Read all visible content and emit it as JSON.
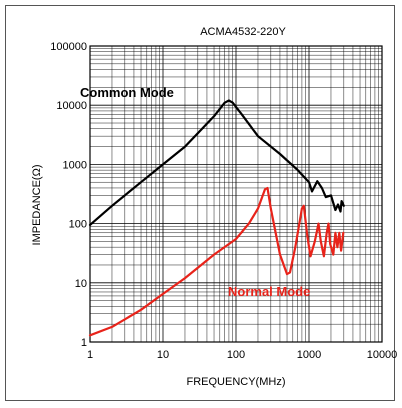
{
  "chart_data": {
    "type": "line",
    "title": "ACMA4532-220Y",
    "xlabel": "FREQUENCY(MHz)",
    "ylabel": "IMPEDANCE(Ω)",
    "x_scale": "log",
    "y_scale": "log",
    "xlim": [
      1,
      10000
    ],
    "ylim": [
      1,
      100000
    ],
    "x_ticks": [
      "1",
      "10",
      "100",
      "1000",
      "10000"
    ],
    "y_ticks": [
      "1",
      "10",
      "100",
      "1000",
      "10000",
      "100000"
    ],
    "grid": true,
    "series": [
      {
        "name": "Common Mode",
        "color": "#000000",
        "points": [
          [
            1,
            95
          ],
          [
            2,
            200
          ],
          [
            5,
            500
          ],
          [
            10,
            1000
          ],
          [
            20,
            2000
          ],
          [
            50,
            6500
          ],
          [
            70,
            11000
          ],
          [
            80,
            12000
          ],
          [
            90,
            11000
          ],
          [
            120,
            7000
          ],
          [
            200,
            3000
          ],
          [
            400,
            1500
          ],
          [
            700,
            800
          ],
          [
            1000,
            500
          ],
          [
            1100,
            350
          ],
          [
            1300,
            520
          ],
          [
            1500,
            400
          ],
          [
            1700,
            280
          ],
          [
            2000,
            300
          ],
          [
            2300,
            170
          ],
          [
            2500,
            210
          ],
          [
            2700,
            160
          ],
          [
            2800,
            240
          ],
          [
            3000,
            200
          ]
        ]
      },
      {
        "name": "Normal Mode",
        "color": "#e8231a",
        "points": [
          [
            1,
            1.3
          ],
          [
            2,
            1.8
          ],
          [
            5,
            3.5
          ],
          [
            10,
            6.5
          ],
          [
            20,
            12
          ],
          [
            50,
            30
          ],
          [
            100,
            55
          ],
          [
            150,
            100
          ],
          [
            200,
            180
          ],
          [
            250,
            380
          ],
          [
            270,
            400
          ],
          [
            300,
            180
          ],
          [
            400,
            30
          ],
          [
            500,
            14
          ],
          [
            550,
            15
          ],
          [
            650,
            40
          ],
          [
            800,
            180
          ],
          [
            850,
            200
          ],
          [
            950,
            60
          ],
          [
            1050,
            28
          ],
          [
            1200,
            50
          ],
          [
            1350,
            100
          ],
          [
            1450,
            50
          ],
          [
            1600,
            28
          ],
          [
            1750,
            70
          ],
          [
            1850,
            100
          ],
          [
            1950,
            45
          ],
          [
            2150,
            30
          ],
          [
            2300,
            70
          ],
          [
            2450,
            40
          ],
          [
            2600,
            70
          ],
          [
            2750,
            35
          ],
          [
            2950,
            70
          ]
        ]
      }
    ]
  }
}
